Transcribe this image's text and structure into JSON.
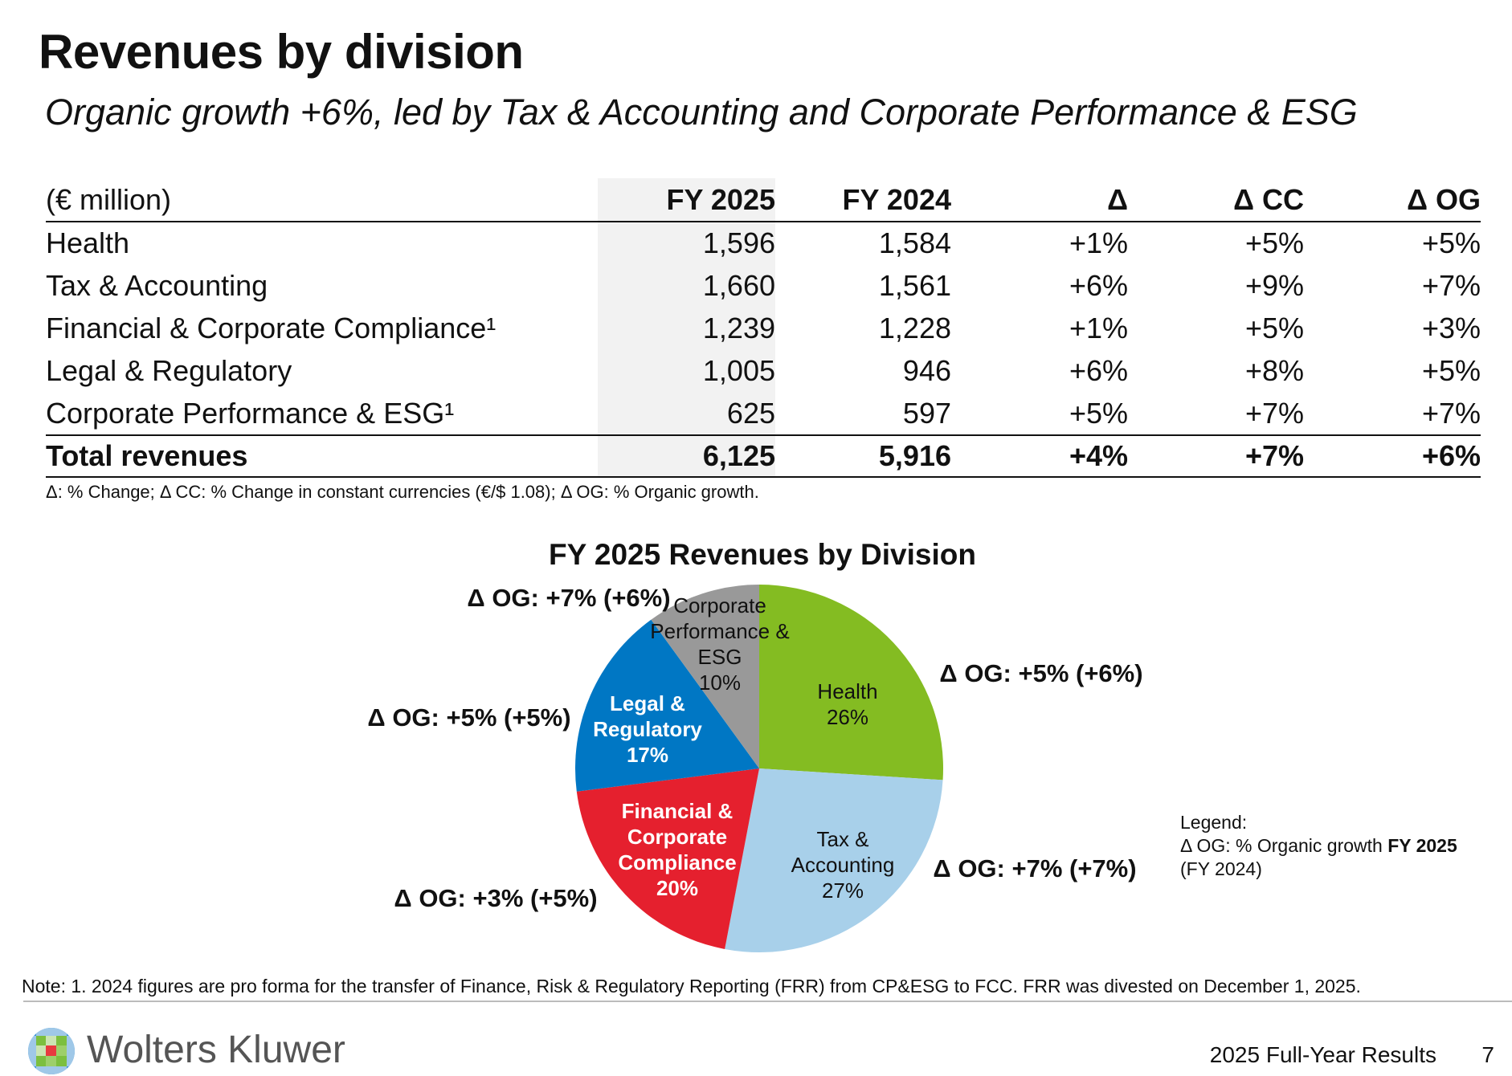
{
  "header": {
    "title": "Revenues by division",
    "subtitle": "Organic growth +6%, led by Tax & Accounting and Corporate Performance & ESG"
  },
  "table": {
    "columns": [
      "(€ million)",
      "FY 2025",
      "FY 2024",
      "Δ",
      "Δ CC",
      "Δ OG"
    ],
    "rows": [
      [
        "Health",
        "1,596",
        "1,584",
        "+1%",
        "+5%",
        "+5%"
      ],
      [
        "Tax & Accounting",
        "1,660",
        "1,561",
        "+6%",
        "+9%",
        "+7%"
      ],
      [
        "Financial & Corporate Compliance¹",
        "1,239",
        "1,228",
        "+1%",
        "+5%",
        "+3%"
      ],
      [
        "Legal & Regulatory",
        "1,005",
        "946",
        "+6%",
        "+8%",
        "+5%"
      ],
      [
        "Corporate Performance & ESG¹",
        "625",
        "597",
        "+5%",
        "+7%",
        "+7%"
      ]
    ],
    "total": [
      "Total revenues",
      "6,125",
      "5,916",
      "+4%",
      "+7%",
      "+6%"
    ],
    "footnote": "Δ: % Change; Δ CC: % Change in constant currencies (€/$ 1.08); Δ OG: % Organic growth."
  },
  "chart_data": {
    "type": "pie",
    "title": "FY 2025 Revenues by Division",
    "slices": [
      {
        "name": "Health",
        "label_lines": [
          "Health",
          "26%"
        ],
        "value": 26,
        "color": "#84bc22",
        "text_color": "#111",
        "og": "Δ OG: +5% (+6%)"
      },
      {
        "name": "Tax & Accounting",
        "label_lines": [
          "Tax &",
          "Accounting",
          "27%"
        ],
        "value": 27,
        "color": "#a8d0ea",
        "text_color": "#111",
        "og": "Δ OG: +7% (+7%)"
      },
      {
        "name": "Financial & Corporate Compliance",
        "label_lines": [
          "Financial &",
          "Corporate",
          "Compliance",
          "20%"
        ],
        "value": 20,
        "color": "#e5202e",
        "text_color": "#fff",
        "og": "Δ OG: +3% (+5%)"
      },
      {
        "name": "Legal & Regulatory",
        "label_lines": [
          "Legal &",
          "Regulatory",
          "17%"
        ],
        "value": 17,
        "color": "#0077c4",
        "text_color": "#fff",
        "og": "Δ OG: +5% (+5%)"
      },
      {
        "name": "Corporate Performance & ESG",
        "label_lines": [
          "Corporate",
          "Performance &",
          "ESG",
          "10%"
        ],
        "value": 10,
        "color": "#999999",
        "text_color": "#111",
        "og": "Δ OG: +7% (+6%)"
      }
    ]
  },
  "legend": {
    "heading": "Legend:",
    "line1": "Δ OG: % Organic growth ",
    "line1_bold": "FY 2025",
    "line2": "(FY 2024)"
  },
  "note": "Note: 1. 2024 figures are pro forma for the transfer of Finance, Risk & Regulatory Reporting (FRR) from CP&ESG to FCC. FRR was divested on December 1, 2025.",
  "footer": {
    "brand": "Wolters Kluwer",
    "title": "2025 Full-Year Results",
    "page": "7"
  }
}
